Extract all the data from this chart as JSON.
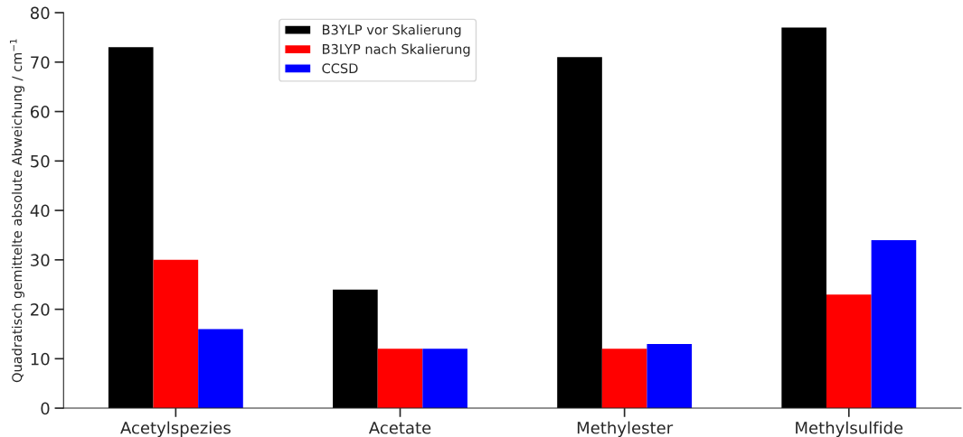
{
  "chart_data": {
    "type": "bar",
    "categories": [
      "Acetylspezies",
      "Acetate",
      "Methylester",
      "Methylsulfide"
    ],
    "ylabel": "Quadratisch gemittelte absolute Abweichung / cm$^{−1}$",
    "series": [
      {
        "name": "B3YLP vor Skalierung",
        "color": "#000000",
        "values": [
          73,
          24,
          71,
          77
        ]
      },
      {
        "name": "B3LYP nach Skalierung",
        "color": "#ff0000",
        "values": [
          30,
          12,
          12,
          23
        ]
      },
      {
        "name": "CCSD",
        "color": "#0000ff",
        "values": [
          16,
          12,
          13,
          34
        ]
      }
    ],
    "ylim": [
      0,
      80
    ],
    "yticks": [
      0,
      10,
      20,
      30,
      40,
      50,
      60,
      70,
      80
    ],
    "grid": false,
    "legend": "top"
  }
}
